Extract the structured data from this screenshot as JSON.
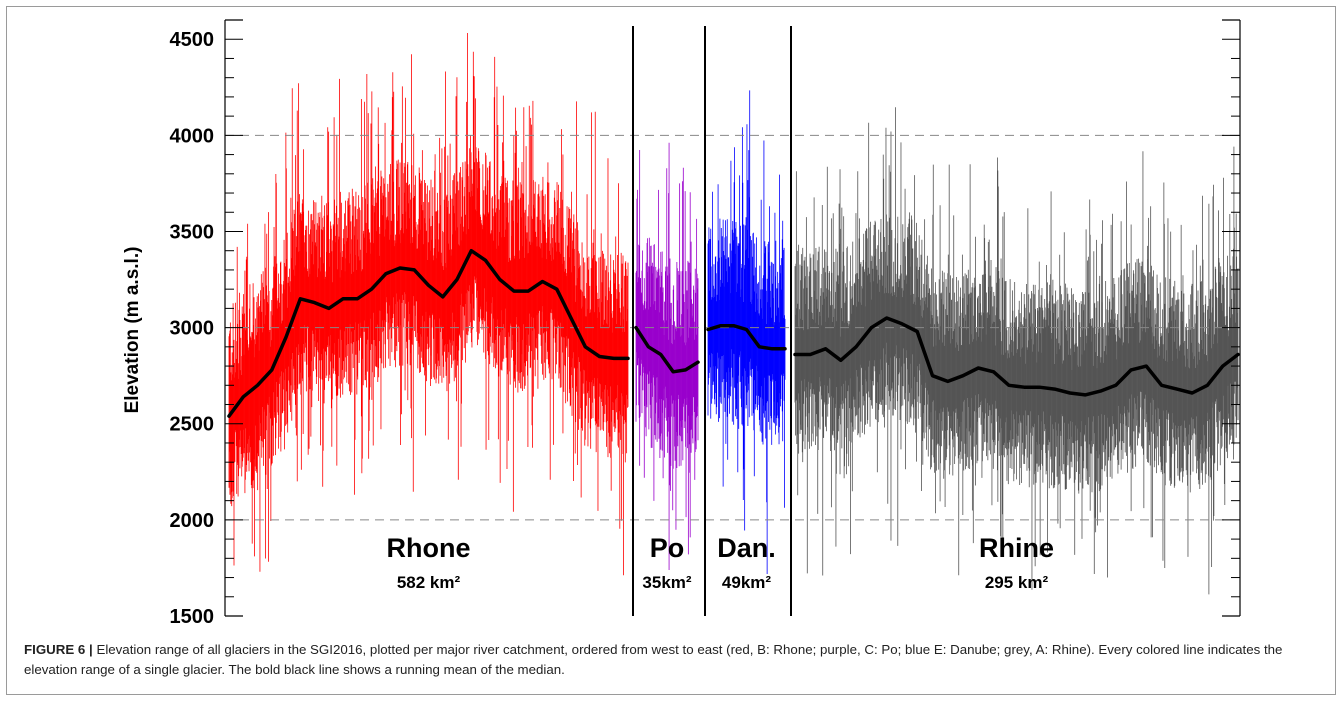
{
  "figure": {
    "caption_label": "FIGURE 6 |",
    "caption_text": " Elevation range of all glaciers in the SGI2016, plotted per major river catchment, ordered from west to east (red, B: Rhone; purple, C: Po; blue E: Danube; grey, A: Rhine). Every colored line indicates the elevation range of a single glacier. The bold black line shows a running mean of the median."
  },
  "chart_data": {
    "type": "range-bar",
    "ylabel": "Elevation (m a.s.l.)",
    "ylim": [
      1500,
      4600
    ],
    "yticks": [
      1500,
      2000,
      2500,
      3000,
      3500,
      4000,
      4500
    ],
    "dashed_gridlines": [
      2000,
      3000,
      4000
    ],
    "colors": {
      "Rhone": "#ff0000",
      "Po": "#9900cc",
      "Danube": "#0000ff",
      "Rhine": "#555555",
      "mean": "#000000"
    },
    "catchments": [
      {
        "key": "Rhone",
        "name": "Rhone",
        "area": "582 km²",
        "color": "#ff0000",
        "running_mean_median": [
          2540,
          2640,
          2700,
          2780,
          2950,
          3150,
          3130,
          3100,
          3150,
          3150,
          3200,
          3280,
          3310,
          3300,
          3220,
          3160,
          3250,
          3400,
          3350,
          3250,
          3190,
          3190,
          3240,
          3200,
          3050,
          2900,
          2850,
          2840,
          2840
        ]
      },
      {
        "key": "Po",
        "name": "Po",
        "area": "35km²",
        "color": "#9900cc",
        "running_mean_median": [
          3000,
          2900,
          2860,
          2770,
          2780,
          2820
        ]
      },
      {
        "key": "Danube",
        "name": "Dan.",
        "area": "49km²",
        "color": "#0000ff",
        "running_mean_median": [
          2990,
          3010,
          3010,
          2990,
          2900,
          2890,
          2890
        ]
      },
      {
        "key": "Rhine",
        "name": "Rhine",
        "area": "295 km²",
        "color": "#555555",
        "running_mean_median": [
          2860,
          2860,
          2890,
          2830,
          2900,
          3000,
          3050,
          3020,
          2980,
          2750,
          2720,
          2750,
          2790,
          2770,
          2700,
          2690,
          2690,
          2680,
          2660,
          2650,
          2670,
          2700,
          2780,
          2800,
          2700,
          2680,
          2660,
          2700,
          2800,
          2860
        ]
      }
    ]
  }
}
